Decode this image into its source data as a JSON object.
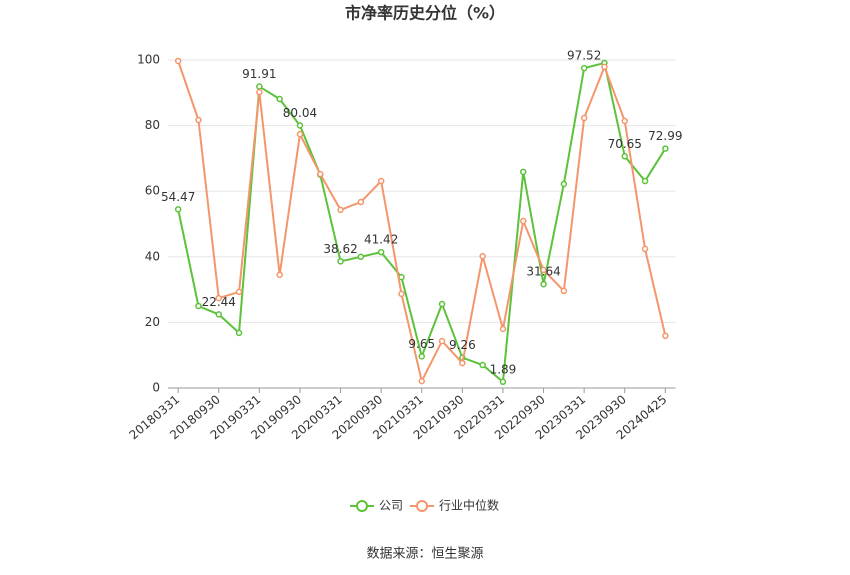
{
  "chart_data": {
    "type": "line",
    "title": "市净率历史分位（%）",
    "categories": [
      "20180331",
      null,
      "20180930",
      null,
      "20190331",
      null,
      "20190930",
      null,
      "20200331",
      null,
      "20200930",
      null,
      "20210331",
      null,
      "20210930",
      null,
      "20220331",
      null,
      "20220930",
      null,
      "20230331",
      null,
      "20230930",
      null,
      "20240425"
    ],
    "series": [
      {
        "name": "公司",
        "color": "#5cc23a",
        "values": [
          54.47,
          25.0,
          22.44,
          16.8,
          91.91,
          88.1,
          80.04,
          65.0,
          38.62,
          40.0,
          41.42,
          33.8,
          9.65,
          25.6,
          9.26,
          7.0,
          1.89,
          65.9,
          31.64,
          62.2,
          97.52,
          99.1,
          70.65,
          63.1,
          72.99
        ],
        "value_labels": [
          "54.47",
          null,
          "22.44",
          null,
          "91.91",
          null,
          "80.04",
          null,
          "38.62",
          null,
          "41.42",
          null,
          "9.65",
          null,
          "9.26",
          null,
          "1.89",
          null,
          "31.64",
          null,
          "97.52",
          null,
          "70.65",
          null,
          "72.99"
        ]
      },
      {
        "name": "行业中位数",
        "color": "#f4966c",
        "values": [
          99.7,
          81.7,
          27.4,
          29.3,
          90.2,
          34.5,
          77.4,
          65.2,
          54.3,
          56.7,
          63.1,
          28.7,
          2.1,
          14.3,
          7.6,
          40.2,
          18.0,
          50.9,
          36.0,
          29.6,
          82.3,
          97.9,
          81.4,
          42.4,
          15.9
        ]
      }
    ],
    "ylim": [
      0,
      100
    ],
    "yticks": [
      0,
      20,
      40,
      60,
      80,
      100
    ],
    "grid": true,
    "legend": "bottom",
    "source": "数据来源：恒生聚源"
  }
}
